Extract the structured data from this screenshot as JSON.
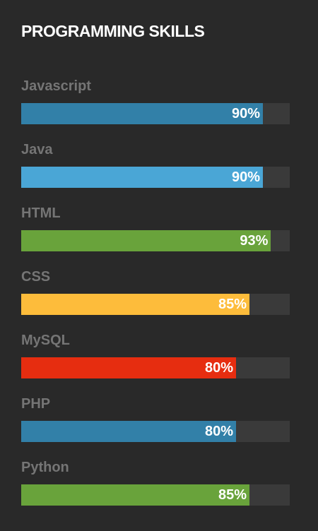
{
  "title": "PROGRAMMING SKILLS",
  "skills": [
    {
      "name": "Javascript",
      "percent": 90,
      "label": "90%",
      "color": "#3280a8"
    },
    {
      "name": "Java",
      "percent": 90,
      "label": "90%",
      "color": "#4aa6d6"
    },
    {
      "name": "HTML",
      "percent": 93,
      "label": "93%",
      "color": "#69a33b"
    },
    {
      "name": "CSS",
      "percent": 85,
      "label": "85%",
      "color": "#fdbc3b"
    },
    {
      "name": "MySQL",
      "percent": 80,
      "label": "80%",
      "color": "#e62d10"
    },
    {
      "name": "PHP",
      "percent": 80,
      "label": "80%",
      "color": "#3280a8"
    },
    {
      "name": "Python",
      "percent": 85,
      "label": "85%",
      "color": "#69a33b"
    }
  ]
}
